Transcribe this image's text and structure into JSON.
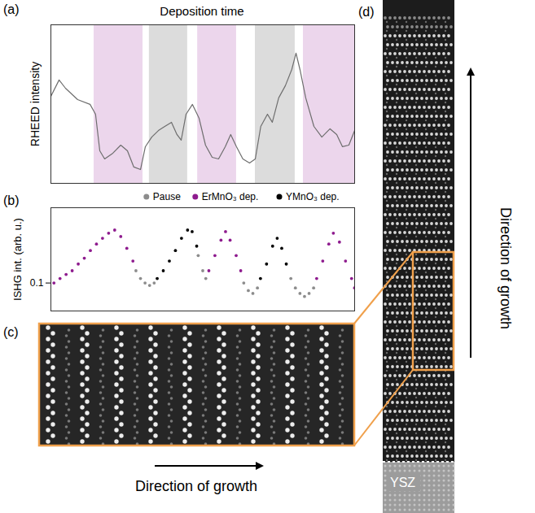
{
  "chart_data": [
    {
      "panel": "(a)",
      "type": "line",
      "xlabel": "Deposition time",
      "ylabel": "RHEED intensity",
      "x": [
        0,
        2.7,
        4.8,
        8.8,
        12.9,
        14.7,
        16.1,
        17.7,
        20.4,
        23.0,
        25.2,
        27.3,
        29.5,
        31.1,
        33.2,
        35.4,
        37.5,
        39.7,
        41.5,
        42.9,
        44.5,
        46.6,
        48.8,
        50.9,
        53.1,
        55.2,
        57.4,
        59.2,
        61.1,
        63.2,
        65.4,
        67.3,
        69.1,
        71.3,
        72.9,
        75.0,
        77.2,
        79.3,
        80.7,
        82.0,
        83.9,
        86.6,
        89.2,
        91.9,
        94.1,
        96.0,
        98.1,
        100
      ],
      "values": [
        54.9,
        65.2,
        60.0,
        52.8,
        49.8,
        43.6,
        20.5,
        15.4,
        19.0,
        24.1,
        20.5,
        10.3,
        8.7,
        23.1,
        29.2,
        33.3,
        35.9,
        38.5,
        30.8,
        27.2,
        43.6,
        49.8,
        41.0,
        24.1,
        16.4,
        15.4,
        23.1,
        30.8,
        23.1,
        15.4,
        12.8,
        15.4,
        35.9,
        43.6,
        38.5,
        53.9,
        61.6,
        71.8,
        82.1,
        71.8,
        53.9,
        35.9,
        29.2,
        34.4,
        30.8,
        23.1,
        24.1,
        33.3
      ],
      "color": "#6e6e6e",
      "xlim": [
        0,
        100
      ],
      "ylim": [
        0,
        100
      ],
      "tick_labels": false,
      "shaded": [
        {
          "x": [
            14.2,
            30.3
          ],
          "color": "#ecd6ec"
        },
        {
          "x": [
            32.4,
            45.0
          ],
          "color": "#dcdcdc"
        },
        {
          "x": [
            48.3,
            61.1
          ],
          "color": "#ecd6ec"
        },
        {
          "x": [
            67.3,
            80.4
          ],
          "color": "#dcdcdc"
        },
        {
          "x": [
            83.1,
            100
          ],
          "color": "#ecd6ec"
        }
      ]
    },
    {
      "panel": "(b)",
      "type": "scatter",
      "ylabel": "ISHG int. (arb. u.)",
      "series": [
        {
          "name": "Pause",
          "color": "#8c8c8c",
          "x": [
            28,
            29.5,
            31,
            32.5,
            34,
            48.5,
            50,
            51,
            63.5,
            65,
            66.5,
            68,
            79,
            80.5,
            82,
            83.5,
            85,
            86.5
          ],
          "values": [
            0.13,
            0.11,
            0.1,
            0.095,
            0.1,
            0.18,
            0.13,
            0.11,
            0.1,
            0.085,
            0.08,
            0.09,
            0.11,
            0.09,
            0.08,
            0.075,
            0.08,
            0.09
          ]
        },
        {
          "name": "ErMnO₃ dep.",
          "color": "#8e1b8e",
          "x": [
            1,
            3,
            5,
            7,
            9,
            11,
            13,
            15,
            17,
            19,
            21,
            23,
            25,
            27,
            52,
            54,
            56,
            57.5,
            59,
            61,
            62.5,
            87.5,
            89.5,
            91.5,
            93,
            95,
            97,
            99,
            100
          ],
          "values": [
            0.1,
            0.11,
            0.12,
            0.13,
            0.15,
            0.17,
            0.2,
            0.23,
            0.26,
            0.29,
            0.31,
            0.27,
            0.21,
            0.16,
            0.13,
            0.18,
            0.25,
            0.3,
            0.25,
            0.18,
            0.13,
            0.11,
            0.16,
            0.23,
            0.29,
            0.24,
            0.16,
            0.11,
            0.09
          ]
        },
        {
          "name": "YMnO₃ dep.",
          "color": "#000000",
          "x": [
            35,
            37,
            39,
            41,
            43,
            45,
            46.5,
            48,
            69,
            71,
            73,
            74.5,
            76,
            77.5
          ],
          "values": [
            0.11,
            0.13,
            0.16,
            0.2,
            0.26,
            0.31,
            0.3,
            0.22,
            0.11,
            0.15,
            0.22,
            0.26,
            0.21,
            0.15
          ]
        }
      ],
      "xlim": [
        0,
        100
      ],
      "ylim": [
        0.055,
        0.5
      ],
      "yticks": [
        0.1
      ],
      "log": "y",
      "tick_labels": "y",
      "legend": "top"
    }
  ],
  "images": [
    {
      "panel": "(c)",
      "caption": "Direction of growth"
    },
    {
      "panel": "(d)",
      "substrate": "YSZ",
      "caption": "Direction of growth"
    }
  ]
}
